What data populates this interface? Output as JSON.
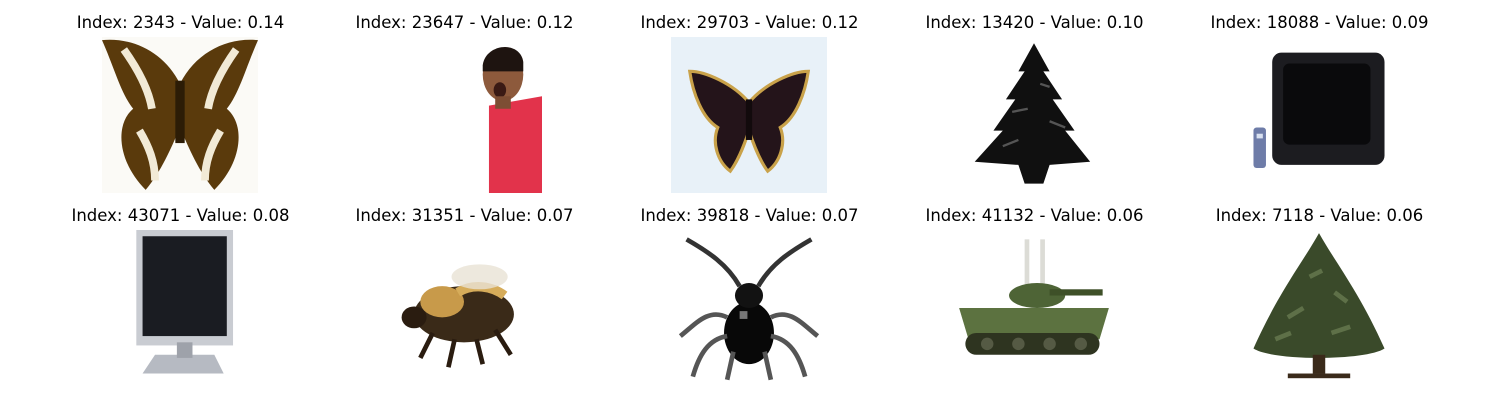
{
  "grid": {
    "items": [
      {
        "title": "Index: 2343 - Value: 0.14",
        "icon": "butterfly-brown"
      },
      {
        "title": "Index: 23647 - Value: 0.12",
        "icon": "person-red-shirt"
      },
      {
        "title": "Index: 29703 - Value: 0.12",
        "icon": "butterfly-dark"
      },
      {
        "title": "Index: 13420 - Value: 0.10",
        "icon": "tree-black"
      },
      {
        "title": "Index: 18088 - Value: 0.09",
        "icon": "television-crt"
      },
      {
        "title": "Index: 43071 - Value: 0.08",
        "icon": "television-flat"
      },
      {
        "title": "Index: 31351 - Value: 0.07",
        "icon": "bee"
      },
      {
        "title": "Index: 39818 - Value: 0.07",
        "icon": "beetle"
      },
      {
        "title": "Index: 41132 - Value: 0.06",
        "icon": "tank"
      },
      {
        "title": "Index: 7118 - Value: 0.06",
        "icon": "tree-green"
      }
    ]
  }
}
